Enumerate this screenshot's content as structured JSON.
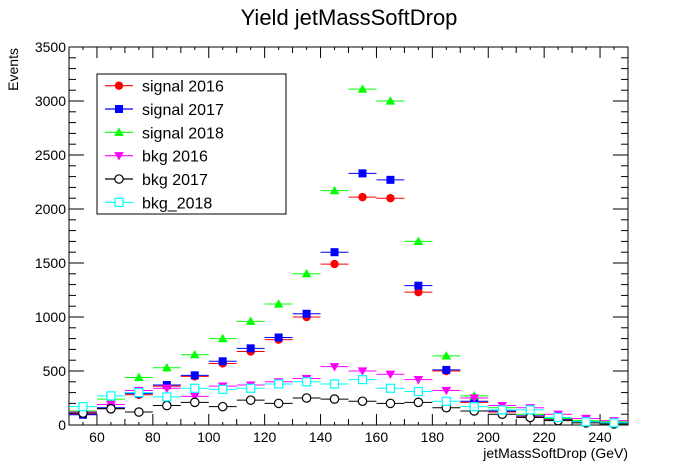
{
  "chart_data": {
    "type": "scatter",
    "title": "Yield jetMassSoftDrop",
    "xlabel": "jetMassSoftDrop (GeV)",
    "ylabel": "Events",
    "xlim": [
      50,
      250
    ],
    "ylim": [
      0,
      3500
    ],
    "x_ticks": [
      60,
      80,
      100,
      120,
      140,
      160,
      180,
      200,
      220,
      240
    ],
    "y_ticks": [
      0,
      500,
      1000,
      1500,
      2000,
      2500,
      3000,
      3500
    ],
    "bin_width": 10,
    "legend_position": "top-left",
    "x": [
      55,
      65,
      75,
      85,
      95,
      105,
      115,
      125,
      135,
      145,
      155,
      165,
      175,
      185,
      195,
      205,
      215,
      225,
      235,
      245
    ],
    "series": [
      {
        "name": "signal 2016",
        "marker": "circle",
        "filled": true,
        "color": "#ff0000",
        "values": [
          100,
          155,
          280,
          360,
          450,
          570,
          680,
          790,
          1000,
          1490,
          2110,
          2100,
          1230,
          500,
          210,
          120,
          80,
          50,
          30,
          20
        ]
      },
      {
        "name": "signal 2017",
        "marker": "square",
        "filled": true,
        "color": "#0000ff",
        "values": [
          95,
          160,
          290,
          370,
          460,
          590,
          710,
          810,
          1030,
          1600,
          2330,
          2270,
          1290,
          510,
          220,
          130,
          85,
          55,
          35,
          25
        ]
      },
      {
        "name": "signal 2018",
        "marker": "triangle-up",
        "filled": true,
        "color": "#00ff00",
        "values": [
          130,
          240,
          440,
          530,
          650,
          800,
          960,
          1120,
          1400,
          2170,
          3110,
          3000,
          1700,
          640,
          270,
          160,
          100,
          60,
          40,
          30
        ]
      },
      {
        "name": "bkg 2016",
        "marker": "triangle-down",
        "filled": true,
        "color": "#ff00ff",
        "values": [
          120,
          190,
          320,
          340,
          265,
          360,
          370,
          400,
          430,
          540,
          500,
          470,
          420,
          320,
          250,
          180,
          160,
          100,
          60,
          40
        ]
      },
      {
        "name": "bkg 2017",
        "marker": "circle",
        "filled": false,
        "color": "#000000",
        "values": [
          110,
          150,
          120,
          180,
          210,
          170,
          230,
          200,
          250,
          240,
          220,
          200,
          210,
          160,
          130,
          100,
          70,
          40,
          20,
          10
        ]
      },
      {
        "name": "bkg_2018",
        "marker": "square",
        "filled": false,
        "color": "#00ffff",
        "values": [
          170,
          270,
          300,
          260,
          340,
          330,
          340,
          380,
          400,
          380,
          420,
          340,
          310,
          220,
          170,
          140,
          140,
          70,
          30,
          20
        ]
      }
    ]
  }
}
